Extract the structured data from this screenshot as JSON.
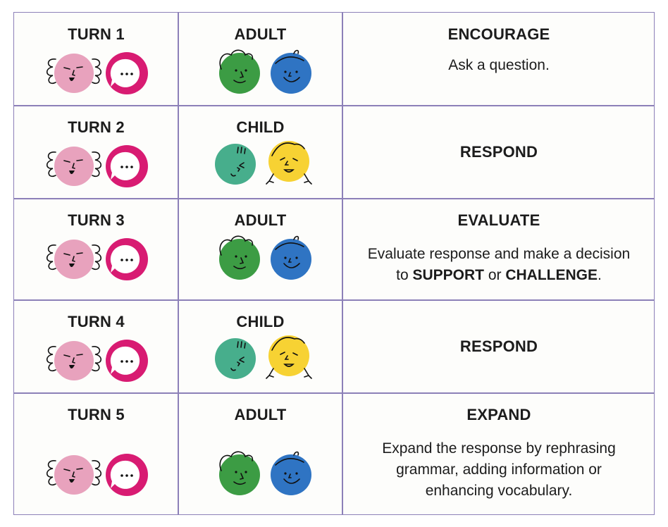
{
  "rows": [
    {
      "turn": "TURN 1",
      "who": "ADULT",
      "who_kind": "adult",
      "action": "ENCOURAGE",
      "desc": [
        {
          "t": "Ask a question.",
          "b": false
        }
      ]
    },
    {
      "turn": "TURN 2",
      "who": "CHILD",
      "who_kind": "child",
      "action": "RESPOND",
      "desc": []
    },
    {
      "turn": "TURN 3",
      "who": "ADULT",
      "who_kind": "adult",
      "action": "EVALUATE",
      "desc": [
        {
          "t": "Evaluate response and make a decision",
          "b": false
        },
        {
          "t": "\n",
          "b": false
        },
        {
          "t": "to ",
          "b": false
        },
        {
          "t": "SUPPORT",
          "b": true
        },
        {
          "t": " or ",
          "b": false
        },
        {
          "t": "CHALLENGE",
          "b": true
        },
        {
          "t": ".",
          "b": false
        }
      ]
    },
    {
      "turn": "TURN 4",
      "who": "CHILD",
      "who_kind": "child",
      "action": "RESPOND",
      "desc": []
    },
    {
      "turn": "TURN 5",
      "who": "ADULT",
      "who_kind": "adult",
      "action": "EXPAND",
      "desc": [
        {
          "t": "Expand the response by rephrasing",
          "b": false
        },
        {
          "t": "\n",
          "b": false
        },
        {
          "t": "grammar, adding information or",
          "b": false
        },
        {
          "t": "\n",
          "b": false
        },
        {
          "t": "enhancing vocabulary.",
          "b": false
        }
      ]
    }
  ],
  "icons": {
    "turn": [
      "thinking-face-icon",
      "speech-bubble-icon"
    ],
    "adult": [
      "green-face-icon",
      "blue-face-icon"
    ],
    "child": [
      "teal-face-icon",
      "yellow-face-icon"
    ]
  },
  "colors": {
    "border": "#8c80b8",
    "pink": "#e8a2bd",
    "magenta": "#d81b72",
    "green": "#3c9c44",
    "blue": "#2f74c3",
    "teal": "#47ae8c",
    "yellow": "#f7d233"
  }
}
